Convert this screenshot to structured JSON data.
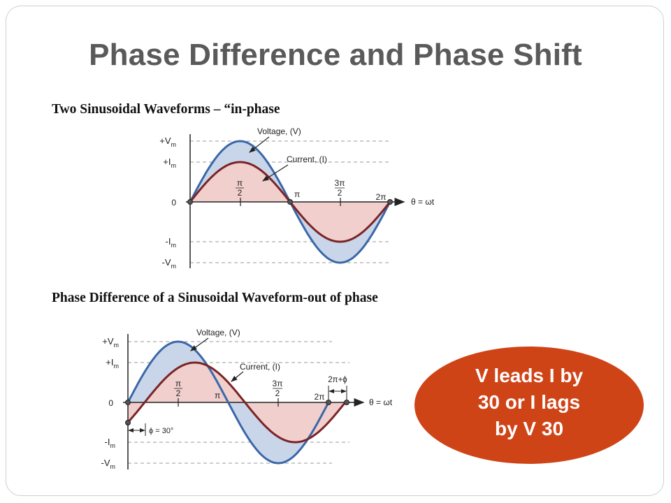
{
  "slide": {
    "title": "Phase Difference and Phase Shift",
    "caption_top": "Two Sinusoidal Waveforms – “in-phase",
    "caption_bottom": "Phase Difference of a Sinusoidal Waveform-out of phase"
  },
  "diagram_top": {
    "voltage_label": "Voltage, (V)",
    "current_label": "Current, (I)",
    "y_labels": {
      "vmax": "+Vm",
      "imax": "+Im",
      "zero": "0",
      "imin": "-Im",
      "vmin": "-Vm"
    },
    "x_ticks": {
      "pi_half_num": "π",
      "pi_half_den": "2",
      "pi": "π",
      "three_pi_half_num": "3π",
      "three_pi_half_den": "2",
      "two_pi": "2π"
    },
    "axis_label": "θ = ωt",
    "phase_shift_deg": 0
  },
  "diagram_bottom": {
    "voltage_label": "Voltage, (V)",
    "current_label": "Current, (I)",
    "y_labels": {
      "vmax": "+Vm",
      "imax": "+Im",
      "zero": "0",
      "imin": "-Im",
      "vmin": "-Vm"
    },
    "x_ticks": {
      "pi_half_num": "π",
      "pi_half_den": "2",
      "pi": "π",
      "three_pi_half_num": "3π",
      "three_pi_half_den": "2",
      "two_pi": "2π",
      "two_pi_phi": "2π+ϕ"
    },
    "phi_label": "ϕ = 30°",
    "axis_label": "θ = ωt",
    "phase_shift_deg": 30
  },
  "callout": {
    "line1": "V leads I by",
    "line2": "30 or I lags",
    "line3": "by V 30",
    "color": "#cf4417"
  },
  "colors": {
    "voltage": "#3a67a8",
    "current": "#7b2426",
    "voltage_fill": "#c9d6ea",
    "current_fill": "#f0cfcd"
  }
}
